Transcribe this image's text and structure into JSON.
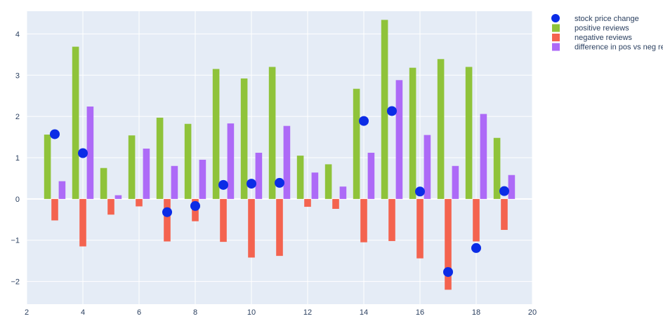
{
  "colors": {
    "plot_bg": "#e5ecf6",
    "grid": "#ffffff",
    "text": "#2a3f5f",
    "positive": "#8fc33a",
    "negative": "#f4634f",
    "difference": "#ad6af7",
    "marker": "#0b2ce6"
  },
  "chart_data": {
    "type": "bar",
    "title": "",
    "xlabel": "",
    "ylabel": "",
    "xlim": [
      2,
      20
    ],
    "ylim": [
      -2.55,
      4.55
    ],
    "grid": true,
    "legend_position": "top-right",
    "x_ticks": [
      "2",
      "4",
      "6",
      "8",
      "10",
      "12",
      "14",
      "16",
      "18",
      "20"
    ],
    "y_ticks": [
      "−2",
      "−1",
      "0",
      "1",
      "2",
      "3",
      "4"
    ],
    "x": [
      3,
      4,
      5,
      6,
      7,
      8,
      9,
      10,
      11,
      12,
      13,
      14,
      15,
      16,
      17,
      18,
      19
    ],
    "series": [
      {
        "name": "stock price change",
        "kind": "scatter",
        "x": [
          3,
          4,
          7,
          8,
          9,
          10,
          11,
          14,
          15,
          16,
          17,
          18,
          19
        ],
        "values": [
          1.57,
          1.11,
          -0.32,
          -0.17,
          0.34,
          0.37,
          0.39,
          1.89,
          2.13,
          0.18,
          -1.77,
          -1.19,
          0.19
        ]
      },
      {
        "name": "positive reviews",
        "kind": "bar",
        "values": [
          1.56,
          3.69,
          0.75,
          1.54,
          1.97,
          1.82,
          3.15,
          2.92,
          3.2,
          1.05,
          0.84,
          2.67,
          4.34,
          3.18,
          3.39,
          3.2,
          1.48
        ]
      },
      {
        "name": "negative reviews",
        "kind": "bar",
        "values": [
          -0.52,
          -1.15,
          -0.38,
          -0.18,
          -1.03,
          -0.54,
          -1.04,
          -1.42,
          -1.38,
          -0.19,
          -0.24,
          -1.05,
          -1.02,
          -1.44,
          -2.2,
          -1.03,
          -0.75
        ]
      },
      {
        "name": "difference in pos vs neg reviews",
        "kind": "bar",
        "values": [
          0.43,
          2.24,
          0.09,
          1.22,
          0.8,
          0.95,
          1.83,
          1.12,
          1.77,
          0.64,
          0.3,
          1.12,
          2.88,
          1.55,
          0.8,
          2.06,
          0.58
        ]
      }
    ]
  }
}
